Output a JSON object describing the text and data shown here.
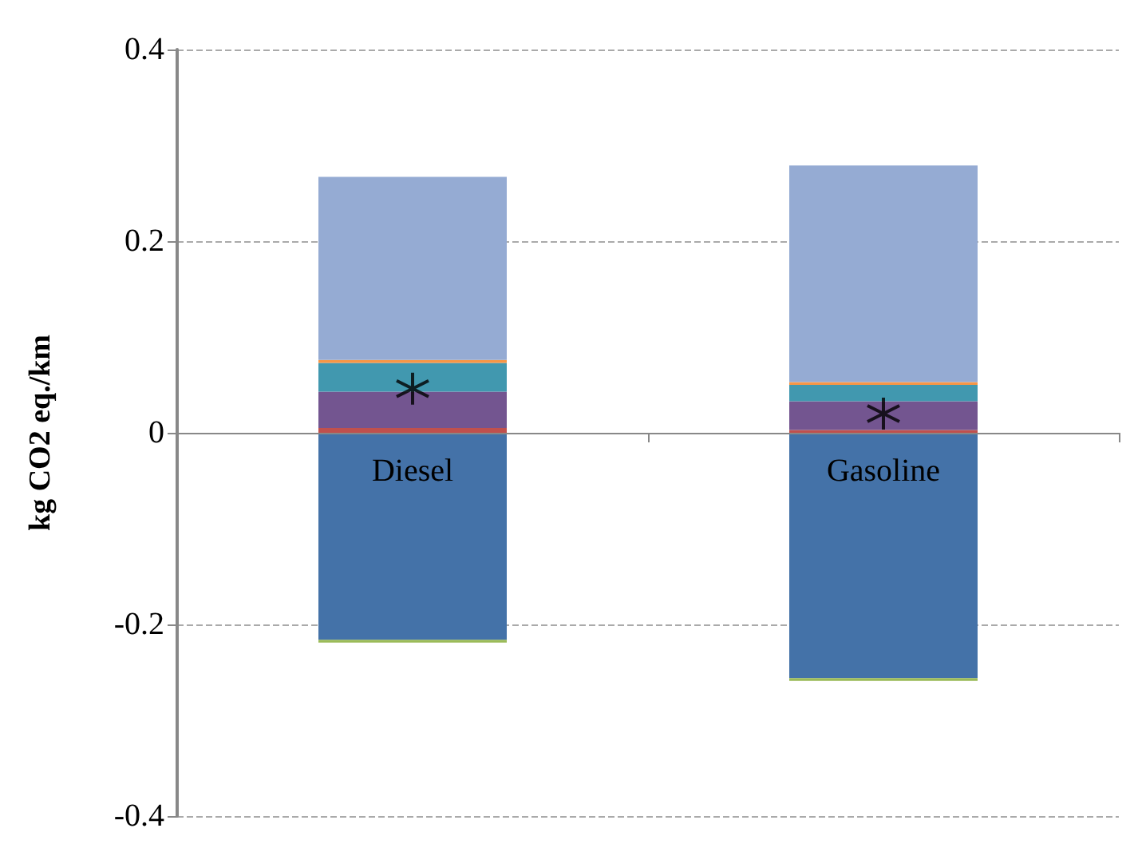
{
  "chart_data": {
    "type": "bar",
    "stacked": true,
    "ylabel": "kg CO2 eq./km",
    "categories": [
      "Diesel",
      "Gasoline"
    ],
    "series": [
      {
        "color": "#4472a8",
        "values": [
          -0.216,
          -0.256
        ]
      },
      {
        "color": "#9bbb59",
        "values": [
          -0.003,
          -0.003
        ]
      },
      {
        "color": "#c0504d",
        "values": [
          0.005,
          0.003
        ]
      },
      {
        "color": "#735590",
        "values": [
          0.038,
          0.03
        ]
      },
      {
        "color": "#4198af",
        "values": [
          0.03,
          0.017
        ]
      },
      {
        "color": "#f79646",
        "values": [
          0.003,
          0.003
        ]
      },
      {
        "color": "#95abd3",
        "values": [
          0.191,
          0.226
        ]
      },
      {
        "type": "scatter",
        "color": "#000000",
        "values": [
          0.046,
          0.02
        ],
        "marker": "cross"
      }
    ],
    "ylim": [
      -0.4,
      0.4
    ],
    "yticks": [
      -0.4,
      -0.2,
      0,
      0.2,
      0.4
    ],
    "grid": "y"
  }
}
